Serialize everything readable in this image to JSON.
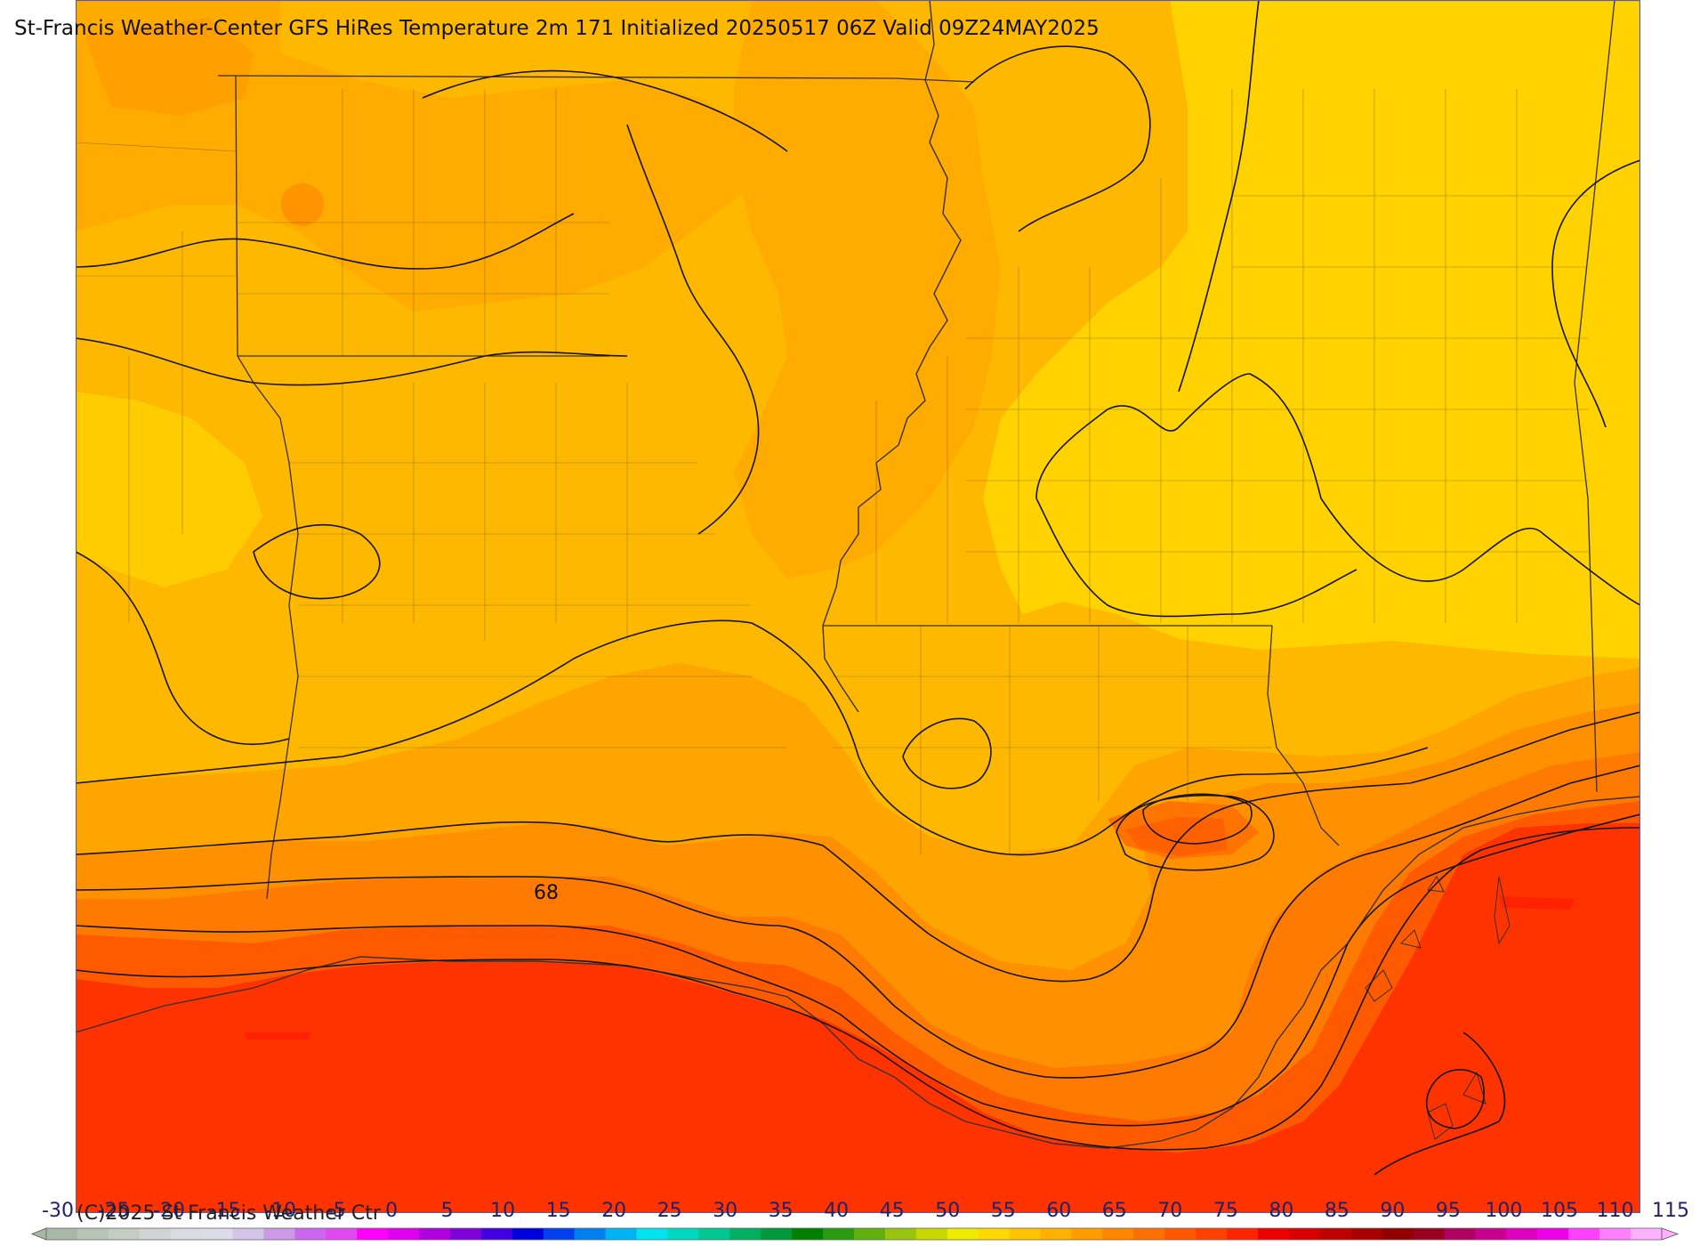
{
  "title": "St-Francis Weather-Center GFS HiRes Temperature 2m  171 Initialized 20250517 06Z Valid 09Z24MAY2025",
  "copyright": "(C)2025 St Francis Weather Ctr",
  "contour_labels": [
    {
      "text": "68"
    }
  ],
  "colorbar": {
    "ticks": [
      "-30",
      "-25",
      "-20",
      "-15",
      "-10",
      "-5",
      "0",
      "5",
      "10",
      "15",
      "20",
      "25",
      "30",
      "35",
      "40",
      "45",
      "50",
      "55",
      "60",
      "65",
      "70",
      "75",
      "80",
      "85",
      "90",
      "95",
      "100",
      "105",
      "110",
      "115"
    ],
    "colors": [
      "#a8b8a8",
      "#b8c4b8",
      "#c4ccc4",
      "#d0d4d4",
      "#d8dce0",
      "#dcdce8",
      "#d2c4e6",
      "#cc99e6",
      "#cc66ee",
      "#e048f0",
      "#ff00ff",
      "#e000f0",
      "#b000e0",
      "#8000d8",
      "#4000e0",
      "#0000dd",
      "#0040ee",
      "#0080f0",
      "#00b4f4",
      "#00e4f0",
      "#00d8c0",
      "#00c890",
      "#00b060",
      "#009838",
      "#008000",
      "#2a9a10",
      "#60b010",
      "#98c410",
      "#c8d800",
      "#eeea00",
      "#ffd800",
      "#ffc400",
      "#ffb000",
      "#ff9c00",
      "#ff8800",
      "#ff7000",
      "#ff5800",
      "#ff4000",
      "#ff2400",
      "#ee0000",
      "#d80000",
      "#c00000",
      "#a80000",
      "#900000",
      "#980020",
      "#b00060",
      "#c80090",
      "#e000c0",
      "#f000e8",
      "#ff40ff",
      "#ff80ff",
      "#ffb0ff"
    ]
  },
  "colors": {
    "gulf": "#ff3300",
    "coast_orange": "#ff7a00",
    "mid_orange": "#ffa200",
    "light_orange": "#ffb800",
    "yellow_orange": "#ffc400",
    "yellow": "#ffd200"
  }
}
